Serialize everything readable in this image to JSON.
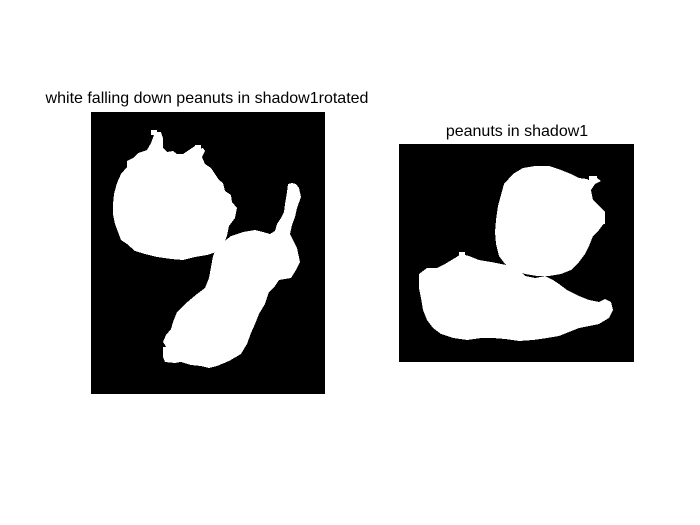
{
  "figures": [
    {
      "title": "white falling down peanuts in shadow1rotated",
      "background_color": "#000000",
      "foreground_color": "#ffffff"
    },
    {
      "title": "peanuts in shadow1",
      "background_color": "#000000",
      "foreground_color": "#ffffff"
    }
  ]
}
